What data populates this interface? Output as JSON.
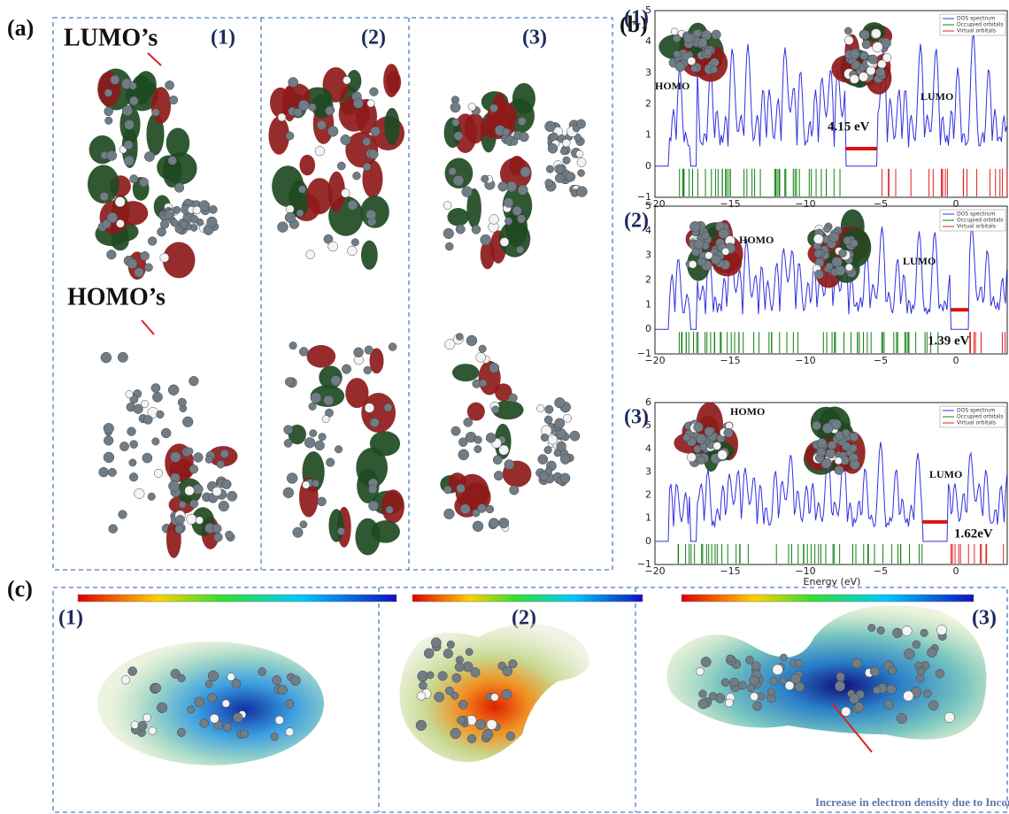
{
  "panel_a": {
    "label": "(a)",
    "lumo": "LUMO’s",
    "homo": "HOMO’s",
    "columns": [
      "(1)",
      "(2)",
      "(3)"
    ]
  },
  "panel_b": {
    "label": "(b)",
    "xlabel": "Energy (eV)",
    "plots": [
      {
        "label": "(1)",
        "yticks": [
          "5",
          "4",
          "3",
          "2",
          "1",
          "0",
          "−1"
        ],
        "xticks": [
          "−20",
          "−15",
          "−10",
          "−5",
          "0"
        ],
        "legend": [
          "DOS spectrum",
          "Occupied orbitals",
          "Virtual orbitals"
        ],
        "homo": "HOMO",
        "lumo": "LUMO",
        "gap": "4.15 eV"
      },
      {
        "label": "(2)",
        "yticks": [
          "5",
          "4",
          "3",
          "2",
          "1",
          "0",
          "−1"
        ],
        "xticks": [
          "−20",
          "−15",
          "−10",
          "−5",
          "0"
        ],
        "legend": [
          "DOS spectrum",
          "Occupied orbitals",
          "Virtual orbitals"
        ],
        "homo": "HOMO",
        "lumo": "LUMO",
        "gap": "1.39 eV"
      },
      {
        "label": "(3)",
        "yticks": [
          "6",
          "5",
          "4",
          "3",
          "2",
          "1",
          "0",
          "−1"
        ],
        "xticks": [
          "−20",
          "−15",
          "−10",
          "−5",
          "0"
        ],
        "legend": [
          "DOS spectrum",
          "Occupied orbitals",
          "Virtual orbitals"
        ],
        "homo": "HOMO",
        "lumo": "LUMO",
        "gap": "1.62eV"
      }
    ]
  },
  "panel_c": {
    "label": "(c)",
    "columns": [
      "(1)",
      "(2)",
      "(3)"
    ],
    "caption": "Increase in electron density due to Incorporation of nZVI"
  }
}
